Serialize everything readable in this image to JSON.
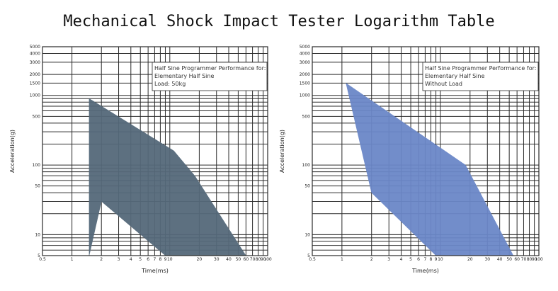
{
  "title": "Mechanical Shock Impact Tester Logarithm Table",
  "colors": {
    "left_fill": "#55697a",
    "right_fill": "#6b87c8",
    "grid": "#2a2a2a"
  },
  "chart_data": [
    {
      "type": "area",
      "xlabel": "Time(ms)",
      "ylabel": "Acceleration(g)",
      "xscale": "log",
      "yscale": "log",
      "xlim": [
        0.5,
        100
      ],
      "ylim": [
        5,
        5000
      ],
      "grid": true,
      "x_tick_labels": [
        "0.5",
        "1",
        "2",
        "3",
        "4",
        "5",
        "6",
        "7",
        "8",
        "9",
        "10",
        "20",
        "30",
        "40",
        "50",
        "60",
        "70",
        "80",
        "90",
        "100"
      ],
      "y_tick_labels": [
        "5",
        "10",
        "50",
        "100",
        "500",
        "1000",
        "1500",
        "2000",
        "3000",
        "4000",
        "5000"
      ],
      "annotation": [
        "Half Sine Programmer Performance for:",
        "Elementary Half Sine",
        "Load: 50kg"
      ],
      "series": [
        {
          "points": [
            [
              1.5,
              900
            ],
            [
              11,
              160
            ],
            [
              18,
              70
            ],
            [
              60,
              5
            ],
            [
              9,
              5
            ],
            [
              2,
              30
            ],
            [
              2,
              30
            ],
            [
              1.5,
              5
            ]
          ]
        }
      ],
      "fill_color": "#55697a"
    },
    {
      "type": "area",
      "xlabel": "Time(ms)",
      "ylabel": "Acceleration(g)",
      "xscale": "log",
      "yscale": "log",
      "xlim": [
        0.5,
        100
      ],
      "ylim": [
        5,
        5000
      ],
      "grid": true,
      "x_tick_labels": [
        "0.5",
        "1",
        "2",
        "3",
        "4",
        "5",
        "6",
        "7",
        "8",
        "9",
        "10",
        "20",
        "30",
        "40",
        "50",
        "60",
        "70",
        "80",
        "90",
        "100"
      ],
      "y_tick_labels": [
        "5",
        "10",
        "50",
        "100",
        "500",
        "1000",
        "1500",
        "2000",
        "3000",
        "4000",
        "5000"
      ],
      "annotation": [
        "Half Sine Programmer Performance for:",
        "Elementary Half Sine",
        "Without Load"
      ],
      "series": [
        {
          "points": [
            [
              1.1,
              1500
            ],
            [
              18,
              100
            ],
            [
              55,
              5
            ],
            [
              9,
              5
            ],
            [
              2,
              40
            ],
            [
              1.1,
              1500
            ]
          ]
        }
      ],
      "fill_color": "#6b87c8"
    }
  ]
}
